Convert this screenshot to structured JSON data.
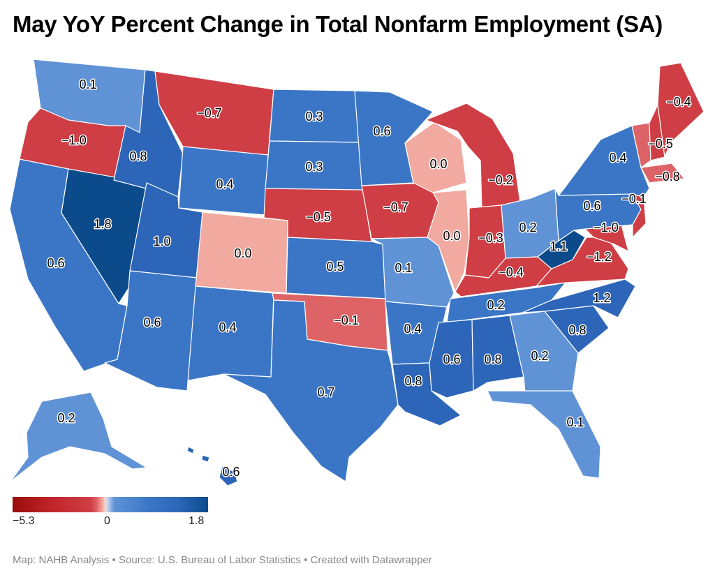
{
  "title": "May YoY Percent Change in Total Nonfarm Employment (SA)",
  "legend": {
    "min_label": "−5.3",
    "mid_label": "0",
    "max_label": "1.8"
  },
  "footer": "Map: NAHB Analysis • Source: U.S. Bureau of Labor Statistics • Created with Datawrapper",
  "colors": {
    "strong_neg": "#cf3e45",
    "light_neg": "#dd6366",
    "zero": "#f1a9a0",
    "light_pos": "#5f93d6",
    "mid_pos": "#3b76c6",
    "dark_pos": "#2d66b8",
    "darkest_pos": "#0b4b8c"
  },
  "states": [
    {
      "id": "WA",
      "value": "0.1"
    },
    {
      "id": "OR",
      "value": "−1.0"
    },
    {
      "id": "CA",
      "value": "0.6"
    },
    {
      "id": "NV",
      "value": "1.8"
    },
    {
      "id": "ID",
      "value": "0.8"
    },
    {
      "id": "MT",
      "value": "−0.7"
    },
    {
      "id": "WY",
      "value": "0.4"
    },
    {
      "id": "UT",
      "value": "1.0"
    },
    {
      "id": "AZ",
      "value": "0.6"
    },
    {
      "id": "CO",
      "value": "0.0"
    },
    {
      "id": "NM",
      "value": "0.4"
    },
    {
      "id": "ND",
      "value": "0.3"
    },
    {
      "id": "SD",
      "value": "0.3"
    },
    {
      "id": "NE",
      "value": "−0.5"
    },
    {
      "id": "KS",
      "value": "0.5"
    },
    {
      "id": "OK",
      "value": "−0.1"
    },
    {
      "id": "TX",
      "value": "0.7"
    },
    {
      "id": "MN",
      "value": "0.6"
    },
    {
      "id": "IA",
      "value": "−0.7"
    },
    {
      "id": "MO",
      "value": "0.1"
    },
    {
      "id": "AR",
      "value": "0.4"
    },
    {
      "id": "LA",
      "value": "0.8"
    },
    {
      "id": "WI",
      "value": "0.0"
    },
    {
      "id": "IL",
      "value": "0.0"
    },
    {
      "id": "MI",
      "value": "−0.2"
    },
    {
      "id": "IN",
      "value": "−0.3"
    },
    {
      "id": "OH",
      "value": "0.2"
    },
    {
      "id": "KY",
      "value": "−0.4"
    },
    {
      "id": "TN",
      "value": "0.2"
    },
    {
      "id": "MS",
      "value": "0.6"
    },
    {
      "id": "AL",
      "value": "0.8"
    },
    {
      "id": "GA",
      "value": "0.2"
    },
    {
      "id": "FL",
      "value": "0.1"
    },
    {
      "id": "SC",
      "value": "0.8"
    },
    {
      "id": "NC",
      "value": "1.2"
    },
    {
      "id": "VA",
      "value": "−1.2"
    },
    {
      "id": "WV",
      "value": "1.1"
    },
    {
      "id": "MD",
      "value": "−1.0"
    },
    {
      "id": "PA",
      "value": "0.6"
    },
    {
      "id": "NJ",
      "value": "−0.1"
    },
    {
      "id": "NY",
      "value": "0.4"
    },
    {
      "id": "VT",
      "value": "−0.5"
    },
    {
      "id": "MA",
      "value": "−0.8"
    },
    {
      "id": "ME",
      "value": "−0.4"
    },
    {
      "id": "AK",
      "value": "0.2"
    },
    {
      "id": "HI",
      "value": "0.6"
    }
  ]
}
